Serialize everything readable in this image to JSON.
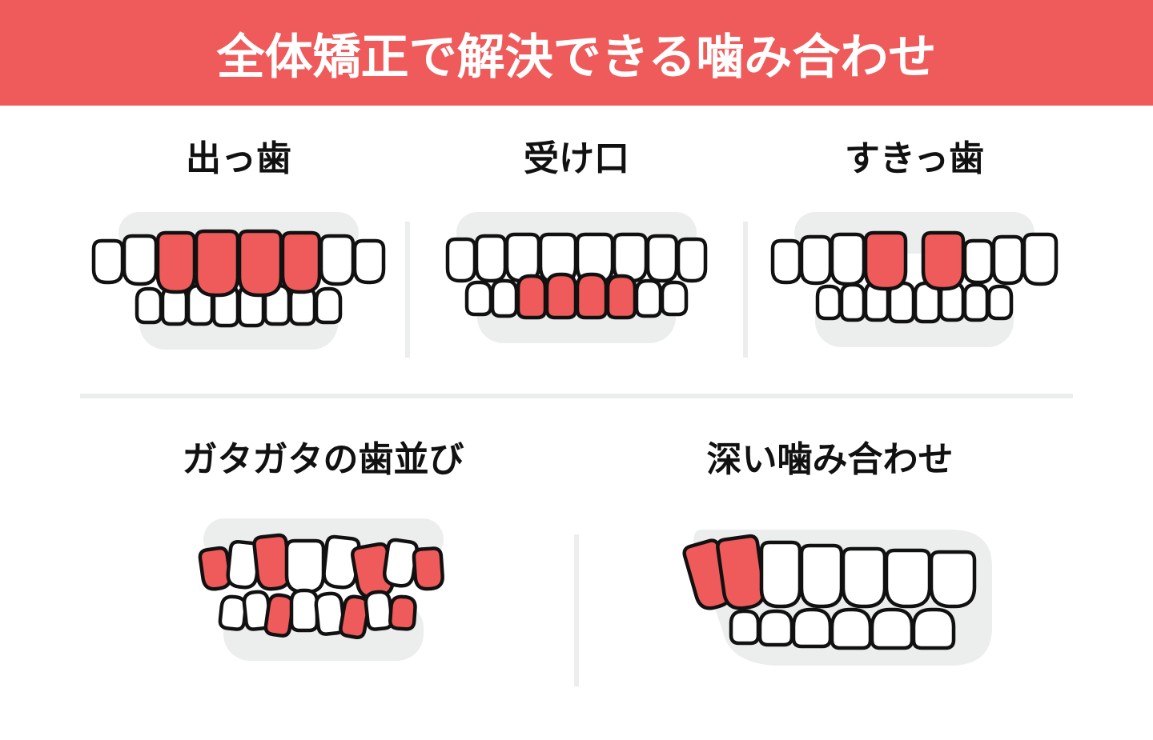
{
  "colors": {
    "header_bg": "#ef5a5a",
    "header_text": "#ffffff",
    "divider": "#eceded",
    "background": "#ffffff",
    "tooth_fill": "#ffffff",
    "tooth_stroke": "#111111",
    "tooth_highlight": "#ef5a5a",
    "gum_bg": "#eceded",
    "label": "#111111"
  },
  "header": {
    "title": "全体矯正で解決できる噛み合わせ",
    "fontsize": 60,
    "height": 132
  },
  "labels": {
    "fontsize_row1": 44,
    "fontsize_row2": 44
  },
  "cells": [
    {
      "id": "deppa",
      "label": "出っ歯",
      "row": 1
    },
    {
      "id": "ukeguchi",
      "label": "受け口",
      "row": 1
    },
    {
      "id": "sukippa",
      "label": "すきっ歯",
      "row": 1
    },
    {
      "id": "gatagata",
      "label": "ガタガタの歯並び",
      "row": 2
    },
    {
      "id": "fukai",
      "label": "深い噛み合わせ",
      "row": 2
    }
  ],
  "svg": {
    "stroke_width": 4.5
  }
}
